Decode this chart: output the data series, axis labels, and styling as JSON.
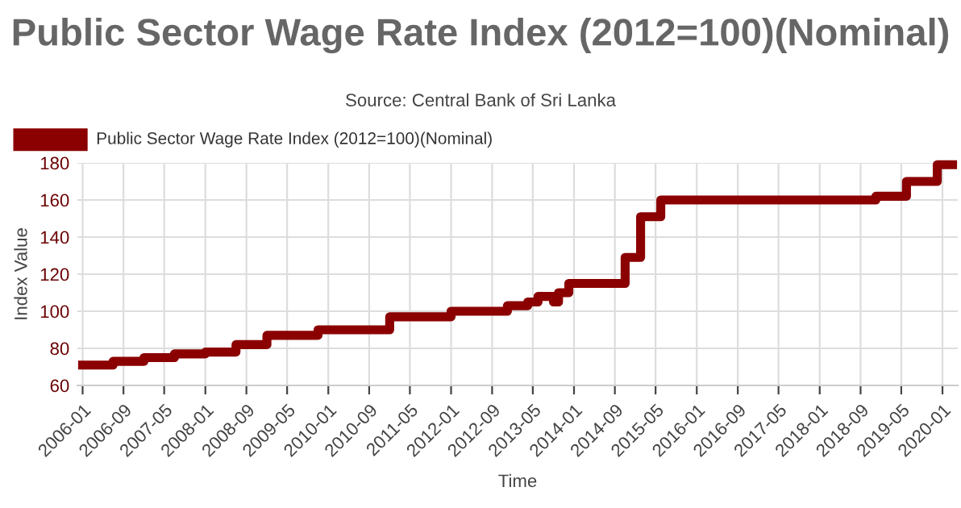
{
  "chart_data": {
    "type": "step",
    "title": "Public Sector Wage Rate Index (2012=100)(Nominal)",
    "subtitle": "Source: Central Bank of Sri Lanka",
    "xlabel": "Time",
    "ylabel": "Index Value",
    "x": [
      "2006-01",
      "2006-07",
      "2007-01",
      "2007-07",
      "2008-01",
      "2008-07",
      "2009-01",
      "2009-11",
      "2011-01",
      "2012-01",
      "2012-12",
      "2013-04",
      "2013-06",
      "2013-09",
      "2013-10",
      "2013-12",
      "2014-11",
      "2015-02",
      "2015-06",
      "2018-12",
      "2019-06",
      "2019-12",
      "2020-03"
    ],
    "series": [
      {
        "name": "Public Sector Wage Rate Index (2012=100)(Nominal)",
        "color": "#8b0000",
        "values": [
          71,
          73,
          75,
          77,
          78,
          82,
          87,
          90,
          97,
          100,
          103,
          105,
          108,
          105,
          110,
          115,
          129,
          151,
          160,
          162,
          170,
          179,
          179
        ]
      }
    ],
    "xlim": [
      "2005-12",
      "2020-04"
    ],
    "xticks": [
      "2006-01",
      "2006-09",
      "2007-05",
      "2008-01",
      "2008-09",
      "2009-05",
      "2010-01",
      "2010-09",
      "2011-05",
      "2012-01",
      "2012-09",
      "2013-05",
      "2014-01",
      "2014-09",
      "2015-05",
      "2016-01",
      "2016-09",
      "2017-05",
      "2018-01",
      "2018-09",
      "2019-05",
      "2020-01"
    ],
    "ylim": [
      60,
      180
    ],
    "yticks": [
      60,
      80,
      100,
      120,
      140,
      160,
      180
    ],
    "grid": true,
    "legend": "top left",
    "line_style": "solid",
    "marker": "none"
  }
}
